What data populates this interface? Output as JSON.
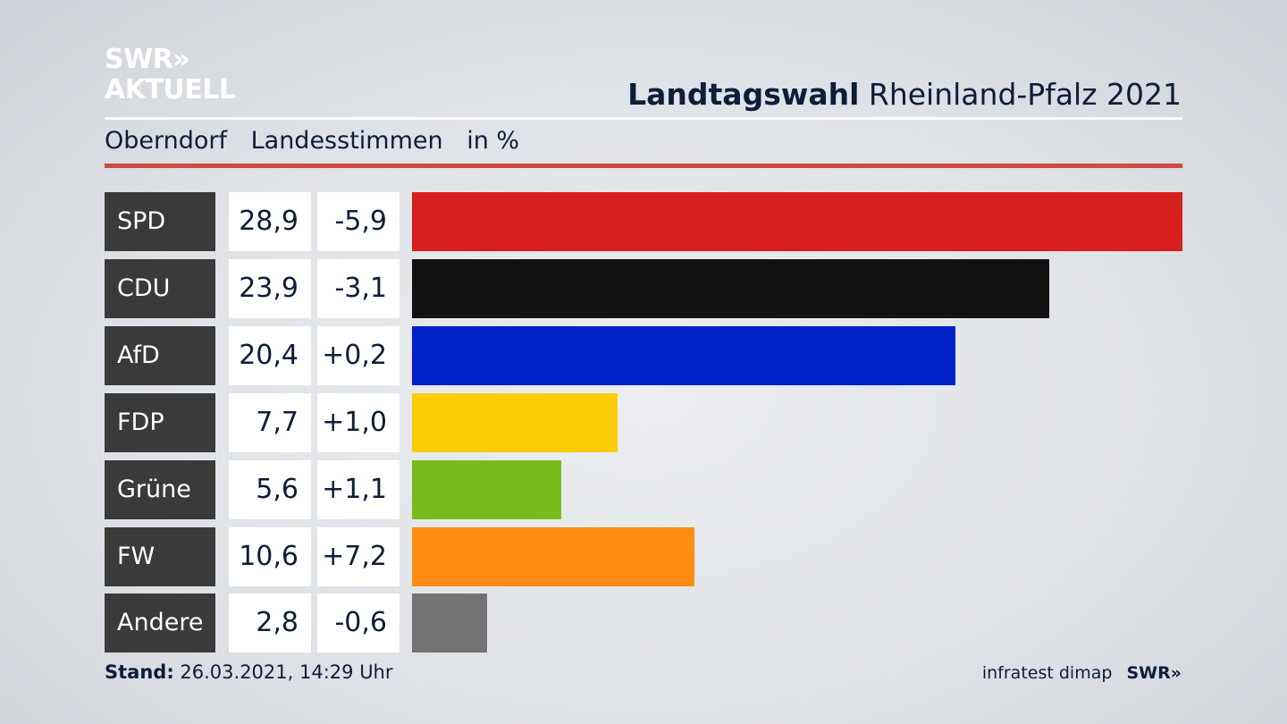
{
  "branding": {
    "logo_line1": "SWR»",
    "logo_line2": "AKTUELL",
    "footer_logo": "SWR»"
  },
  "header": {
    "title_bold": "Landtagswahl",
    "title_rest": "Rheinland-Pfalz 2021",
    "location": "Oberndorf",
    "measure": "Landesstimmen",
    "unit": "in %"
  },
  "footer": {
    "stand_label": "Stand:",
    "stand_value": "26.03.2021, 14:29 Uhr",
    "source": "infratest dimap"
  },
  "chart_data": {
    "type": "bar",
    "orientation": "horizontal",
    "categories": [
      "SPD",
      "CDU",
      "AfD",
      "FDP",
      "Grüne",
      "FW",
      "Andere"
    ],
    "values": [
      28.9,
      23.9,
      20.4,
      7.7,
      5.6,
      10.6,
      2.8
    ],
    "value_labels": [
      "28,9",
      "23,9",
      "20,4",
      "7,7",
      "5,6",
      "10,6",
      "2,8"
    ],
    "changes": [
      "-5,9",
      "-3,1",
      "+0,2",
      "+1,0",
      "+1,1",
      "+7,2",
      "-0,6"
    ],
    "colors": [
      "#d71f1f",
      "#121212",
      "#0020c8",
      "#fecb08",
      "#78bc1b",
      "#fd8c13",
      "#737373"
    ],
    "xlim": [
      0,
      28.9
    ]
  }
}
